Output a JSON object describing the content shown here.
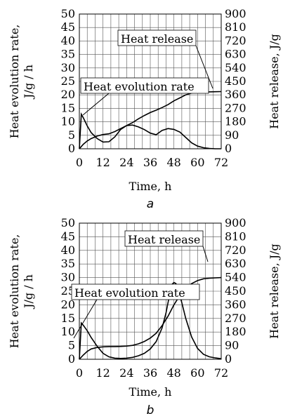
{
  "chart_data": [
    {
      "type": "line",
      "panel_label": "a",
      "xlabel": "Time, h",
      "ylabel_left_line1": "Heat evolution rate,",
      "ylabel_left_line2": "J/g / h",
      "ylabel_right": "Heat release, J/g",
      "xlim": [
        0,
        72
      ],
      "ylim_left": [
        0,
        50
      ],
      "ylim_right": [
        0,
        900
      ],
      "x_ticks": [
        "0",
        "12",
        "24",
        "36",
        "48",
        "60",
        "72"
      ],
      "y_left_ticks": [
        "0",
        "5",
        "10",
        "15",
        "20",
        "25",
        "30",
        "35",
        "40",
        "45",
        "50"
      ],
      "y_right_ticks": [
        "0",
        "90",
        "180",
        "270",
        "360",
        "450",
        "540",
        "630",
        "720",
        "810",
        "900"
      ],
      "grid": true,
      "series": [
        {
          "name": "Heat evolution rate",
          "axis": "left",
          "x": [
            0,
            1,
            2,
            4,
            6,
            9,
            12,
            15,
            18,
            21,
            24,
            27,
            30,
            33,
            36,
            39,
            42,
            45,
            48,
            51,
            54,
            57,
            60,
            63,
            66,
            69,
            72
          ],
          "y": [
            0,
            12.8,
            11.5,
            8.5,
            6,
            3.8,
            2.5,
            2.6,
            4.4,
            7.2,
            8.6,
            8.8,
            8.1,
            7.1,
            5.8,
            5.2,
            6.8,
            7.5,
            7.2,
            6.2,
            4.2,
            2.2,
            1,
            0.4,
            0.1,
            0,
            0
          ]
        },
        {
          "name": "Heat release",
          "axis": "right",
          "x": [
            0,
            1,
            2,
            4,
            6,
            9,
            12,
            15,
            18,
            21,
            24,
            27,
            30,
            33,
            36,
            39,
            42,
            45,
            48,
            51,
            54,
            57,
            60,
            63,
            66,
            69,
            72
          ],
          "y": [
            0,
            15,
            30,
            52,
            68,
            85,
            95,
            100,
            115,
            135,
            155,
            175,
            200,
            222,
            242,
            258,
            275,
            295,
            320,
            340,
            360,
            372,
            378,
            380,
            380,
            381,
            382
          ]
        }
      ]
    },
    {
      "type": "line",
      "panel_label": "b",
      "xlabel": "Time, h",
      "ylabel_left_line1": "Heat evolution rate,",
      "ylabel_left_line2": "J/g / h",
      "ylabel_right": "Heat release, J/g",
      "xlim": [
        0,
        72
      ],
      "ylim_left": [
        0,
        50
      ],
      "ylim_right": [
        0,
        900
      ],
      "x_ticks": [
        "0",
        "12",
        "24",
        "36",
        "48",
        "60",
        "72"
      ],
      "y_left_ticks": [
        "0",
        "5",
        "10",
        "15",
        "20",
        "25",
        "30",
        "35",
        "40",
        "45",
        "50"
      ],
      "y_right_ticks": [
        "0",
        "90",
        "180",
        "270",
        "360",
        "450",
        "540",
        "630",
        "720",
        "810",
        "900"
      ],
      "grid": true,
      "series": [
        {
          "name": "Heat evolution rate",
          "axis": "left",
          "x": [
            0,
            1,
            2,
            4,
            6,
            9,
            12,
            15,
            18,
            21,
            24,
            27,
            30,
            33,
            36,
            39,
            42,
            44,
            46,
            47,
            48,
            49,
            50,
            52,
            54,
            57,
            60,
            63,
            66,
            69,
            72
          ],
          "y": [
            0,
            13.3,
            12.5,
            10.5,
            8,
            4.8,
            2.2,
            0.9,
            0.4,
            0.3,
            0.4,
            0.7,
            1.3,
            2.2,
            3.8,
            6.5,
            11.5,
            17,
            24.5,
            27.5,
            28.2,
            27.8,
            25.8,
            20.8,
            15,
            8.2,
            4,
            1.8,
            0.9,
            0.5,
            0.2
          ]
        },
        {
          "name": "Heat release",
          "axis": "right",
          "x": [
            0,
            2,
            4,
            6,
            9,
            12,
            15,
            18,
            21,
            24,
            27,
            30,
            33,
            36,
            39,
            42,
            45,
            48,
            51,
            54,
            57,
            60,
            63,
            66,
            69,
            72
          ],
          "y": [
            0,
            28,
            52,
            68,
            78,
            82,
            84,
            84,
            85,
            87,
            92,
            102,
            118,
            140,
            172,
            222,
            285,
            360,
            422,
            468,
            500,
            520,
            532,
            536,
            538,
            540
          ]
        }
      ]
    }
  ],
  "callouts": [
    {
      "panel": 0,
      "text": "Heat release"
    },
    {
      "panel": 0,
      "text": "Heat evolution rate"
    },
    {
      "panel": 1,
      "text": "Heat release"
    },
    {
      "panel": 1,
      "text": "Heat evolution rate"
    }
  ]
}
